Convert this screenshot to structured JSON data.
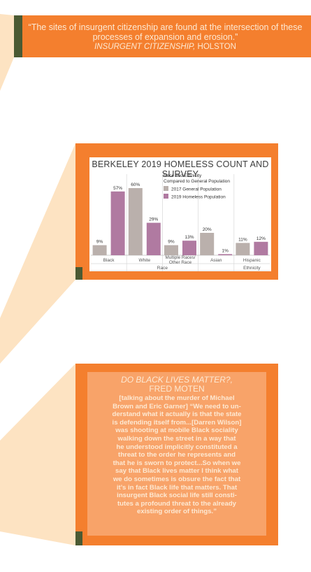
{
  "banner": {
    "quote": "“The sites of insurgent citizenship are found at the intersection of these processes of expansion and erosion.”",
    "source_title": "INSURGENT CITIZENSHIP,",
    "source_author": " HOLSTON"
  },
  "chart_card": {
    "title": "BERKELEY 2019 HOMELESS COUNT AND SURVEY"
  },
  "colors": {
    "orange": "#f47f2e",
    "light_orange": "#f8a369",
    "beige": "#fde3c2",
    "olive": "#4a5a33",
    "series_general": "#bab0ac",
    "series_homeless": "#b07aa1"
  },
  "chart_data": {
    "type": "bar",
    "title": "BERKELEY 2019 HOMELESS COUNT AND SURVEY",
    "legend_title_line1": "Race and Ethnicity",
    "legend_title_line2": "Compared to General Population",
    "legend_placement": "top-center",
    "categories": [
      "Black",
      "White",
      "Multiple Races/ Other Race",
      "Asian",
      "Hispanic"
    ],
    "category_lines": [
      [
        "Black"
      ],
      [
        "White"
      ],
      [
        "Multiple Races/",
        "Other Race"
      ],
      [
        "Asian"
      ],
      [
        "Hispanic"
      ]
    ],
    "groups": [
      {
        "label": "Race",
        "count": 4
      },
      {
        "label": "Ethnicity",
        "count": 1
      }
    ],
    "series": [
      {
        "name": "2017 General Population",
        "values": [
          9,
          60,
          9,
          20,
          11
        ],
        "labels": [
          "9%",
          "60%",
          "9%",
          "20%",
          "11%"
        ]
      },
      {
        "name": "2019 Homeless Population",
        "values": [
          57,
          29,
          13,
          1,
          12
        ],
        "labels": [
          "57%",
          "29%",
          "13%",
          "1%",
          "12%"
        ]
      }
    ],
    "ylim": [
      0,
      65
    ],
    "grid": false
  },
  "quote_card": {
    "title": "DO BLACK LIVES MATTER?,",
    "author": "FRED MOTEN",
    "body_lines": [
      "[talking about the murder of Michael",
      "Brown and Eric Garner] “We need to un-",
      "derstand what it actually is that the state",
      "is defending itself from...[Darren Wilson]",
      "was shooting at mobile Black sociality",
      "walking down the street in a way that",
      "he understood implicitly constituted a",
      "threat to the order he represents and",
      "that he is sworn to protect...So when we",
      "say that Black lives matter I think what",
      "we do sometimes is obsure the fact that",
      "it’s in fact Black life that matters. That",
      "insurgent Black social life still consti-",
      "tutes a profound threat to the already",
      "existing order of things.”"
    ]
  }
}
